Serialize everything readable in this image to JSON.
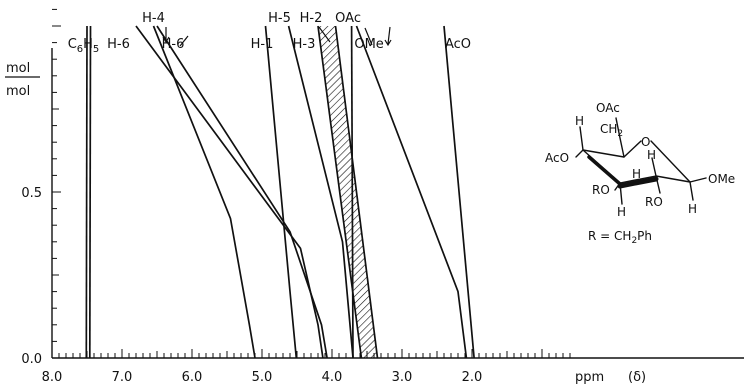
{
  "chart_data": {
    "type": "line",
    "xlabel": "ppm",
    "xlabel_symbol": "(δ)",
    "ylabel": "mol",
    "ylabel_denominator": "mol",
    "xlim": [
      8.0,
      1.0
    ],
    "ylim": [
      0.0,
      1.05
    ],
    "x_reversed": true,
    "x_ticks": [
      {
        "v": 8.0,
        "label": "8.0"
      },
      {
        "v": 7.0,
        "label": "7.0"
      },
      {
        "v": 6.0,
        "label": "6.0"
      },
      {
        "v": 5.0,
        "label": "5.0"
      },
      {
        "v": 4.0,
        "label": "4.0"
      },
      {
        "v": 3.0,
        "label": "3.0"
      },
      {
        "v": 2.0,
        "label": "2.0"
      }
    ],
    "y_ticks": [
      {
        "v": 0.0,
        "label": "0.0"
      },
      {
        "v": 0.5,
        "label": "0.5"
      }
    ],
    "grid": false,
    "series": [
      {
        "name": "C6H5 (a)",
        "label": "",
        "x": [
          7.5,
          7.51
        ],
        "y": [
          1.0,
          0.0
        ]
      },
      {
        "name": "C6H5 (b)",
        "label": "",
        "x": [
          7.45,
          7.46
        ],
        "y": [
          1.0,
          0.0
        ]
      },
      {
        "name": "H-6",
        "label": "H-6",
        "x": [
          6.8,
          4.45,
          4.2,
          4.13
        ],
        "y": [
          1.0,
          0.33,
          0.1,
          0.0
        ]
      },
      {
        "name": "H-4",
        "label": "H-4",
        "x": [
          6.55,
          5.45,
          5.18,
          5.1
        ],
        "y": [
          1.0,
          0.42,
          0.1,
          0.0
        ]
      },
      {
        "name": "H-6'",
        "label": "H-6′",
        "x": [
          6.5,
          4.6,
          4.15,
          4.07
        ],
        "y": [
          1.0,
          0.38,
          0.1,
          0.0
        ]
      },
      {
        "name": "H-1",
        "label": "H-1",
        "x": [
          4.95,
          4.6,
          4.51
        ],
        "y": [
          1.0,
          0.2,
          0.0
        ]
      },
      {
        "name": "H-5",
        "label": "H-5",
        "x": [
          4.62,
          3.85,
          3.7
        ],
        "y": [
          1.0,
          0.35,
          0.0
        ]
      },
      {
        "name": "H-2 (a)",
        "label": "",
        "x": [
          4.2,
          3.58
        ],
        "y": [
          1.0,
          0.0
        ]
      },
      {
        "name": "H-2 (b)",
        "label": "",
        "x": [
          3.95,
          3.35
        ],
        "y": [
          1.0,
          0.0
        ]
      },
      {
        "name": "OAc",
        "label": "",
        "x": [
          3.72,
          3.7
        ],
        "y": [
          1.0,
          0.0
        ]
      },
      {
        "name": "OMe",
        "label": "",
        "x": [
          3.65,
          2.2,
          2.08
        ],
        "y": [
          1.0,
          0.2,
          0.0
        ]
      },
      {
        "name": "AcO",
        "label": "",
        "x": [
          2.4,
          1.97
        ],
        "y": [
          1.0,
          0.0
        ]
      }
    ],
    "hatched_band": {
      "name": "H-2/H-3",
      "x_top": [
        4.2,
        3.95
      ],
      "x_bottom": [
        3.58,
        3.35
      ]
    },
    "labels": [
      {
        "id": "c6h5",
        "base": "C",
        "sub1": "6",
        "mid": "H",
        "sub2": "5",
        "x": 7.55,
        "row": 2
      },
      {
        "id": "h6",
        "text": "H-6",
        "x": 7.05,
        "row": 2
      },
      {
        "id": "h4",
        "text": "H-4",
        "x": 6.55,
        "row": 1
      },
      {
        "id": "h6p",
        "text": "H-6′",
        "x": 6.25,
        "row": 2
      },
      {
        "id": "h1",
        "text": "H-1",
        "x": 5.0,
        "row": 2
      },
      {
        "id": "h5",
        "text": "H-5",
        "x": 4.75,
        "row": 1
      },
      {
        "id": "h3",
        "text": "H-3",
        "x": 4.4,
        "row": 2
      },
      {
        "id": "h2",
        "text": "H-2",
        "x": 4.3,
        "row": 1
      },
      {
        "id": "oac",
        "text": "OAc",
        "x": 3.77,
        "row": 1
      },
      {
        "id": "ome",
        "text": "OMe",
        "x": 3.47,
        "row": 2
      },
      {
        "id": "aco",
        "text": "AcO",
        "x": 2.2,
        "row": 2
      }
    ]
  },
  "structure": {
    "oac_top": "OAc",
    "ch2_base": "CH",
    "ch2_sub": "2",
    "ring_o": "O",
    "aco_left": "AcO",
    "ro_left": "RO",
    "ro_mid": "RO",
    "ome_right": "OMe",
    "h_top_left": "H",
    "h_upper_right": "H",
    "h_middle": "H",
    "h_bottom_left": "H",
    "h_bottom_right": "H",
    "r_def_prefix": "R = CH",
    "r_def_sub": "2",
    "r_def_suffix": "Ph"
  }
}
